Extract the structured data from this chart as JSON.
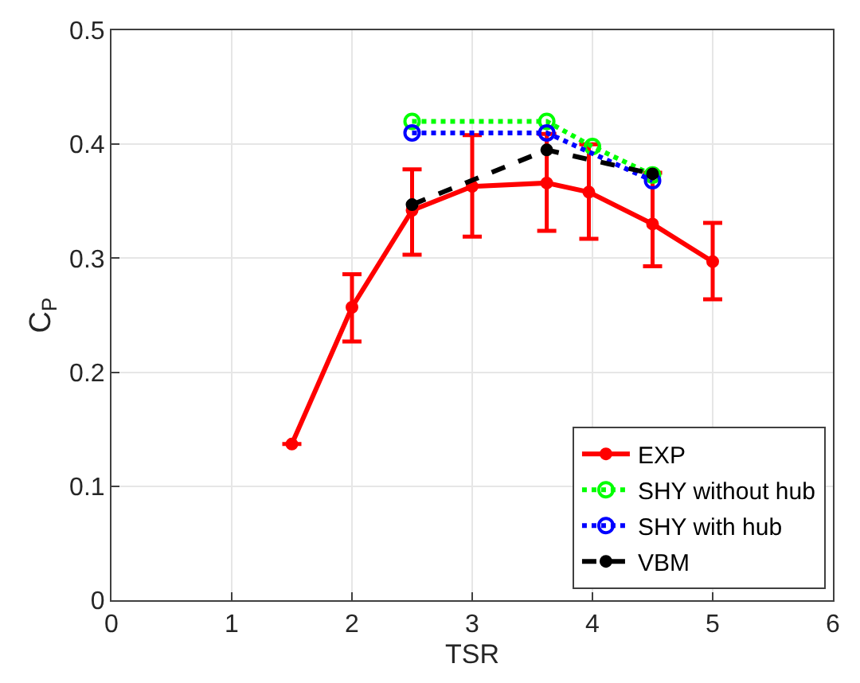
{
  "chart_data": {
    "type": "line",
    "xlabel": "TSR",
    "ylabel": "C$_{P}$",
    "xlim": [
      0,
      6
    ],
    "xticks": [
      0,
      1,
      2,
      3,
      4,
      5,
      6
    ],
    "ylim": [
      0,
      0.5
    ],
    "yticks": [
      0,
      0.1,
      0.2,
      0.3,
      0.4,
      0.5
    ],
    "grid": true,
    "legend": "bottom right",
    "series": [
      {
        "name": "EXP",
        "color": "#ff0000",
        "line_style": "solid",
        "marker": "circle",
        "x": [
          1.5,
          2,
          2.5,
          3,
          3.62,
          3.97,
          4.5,
          5
        ],
        "values": [
          0.137,
          0.257,
          0.342,
          0.363,
          0.366,
          0.358,
          0.33,
          0.297
        ],
        "errors": [
          null,
          [
            0.227,
            0.286
          ],
          [
            0.303,
            0.378
          ],
          [
            0.319,
            0.408
          ],
          [
            0.324,
            0.409
          ],
          [
            0.317,
            0.4
          ],
          [
            0.293,
            0.375
          ],
          [
            0.264,
            0.331
          ]
        ]
      },
      {
        "name": "SHY without hub",
        "color": "#00ff00",
        "line_style": "dotted",
        "marker": "circle",
        "x": [
          2.5,
          3.62,
          4.0,
          4.5
        ],
        "values": [
          0.42,
          0.42,
          0.398,
          0.373
        ]
      },
      {
        "name": "SHY with hub",
        "color": "#0000ff",
        "line_style": "dotted",
        "marker": "circle",
        "x": [
          2.5,
          3.62,
          4.5
        ],
        "values": [
          0.41,
          0.41,
          0.368
        ]
      },
      {
        "name": "VBM",
        "color": "#000000",
        "line_style": "dashed",
        "marker": "circle",
        "x": [
          2.5,
          3.62,
          4.5
        ],
        "values": [
          0.347,
          0.395,
          0.374
        ]
      }
    ]
  }
}
